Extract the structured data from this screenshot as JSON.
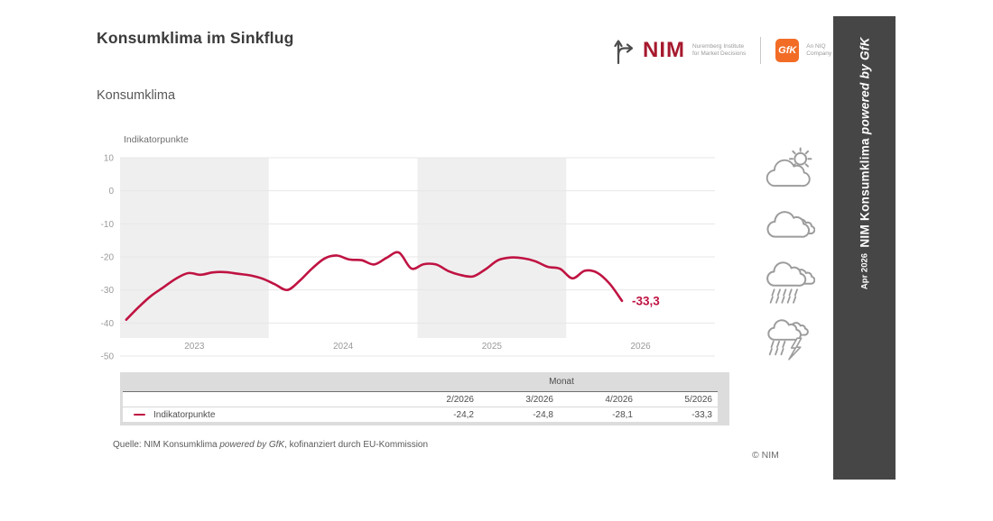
{
  "title": "Konsumklima im Sinkflug",
  "subtitle": "Konsumklima",
  "logos": {
    "nim_name": "NIM",
    "nim_color": "#a6192e",
    "nim_tagline1": "Nuremberg Institute",
    "nim_tagline2": "for Market Decisions",
    "gfk_name": "GfK",
    "gfk_color": "#f26c26",
    "gfk_tagline1": "An NIQ",
    "gfk_tagline2": "Company"
  },
  "chart_data": {
    "type": "line",
    "ylabel": "Indikatorpunkte",
    "ylim": [
      -50,
      10
    ],
    "yticks": [
      "10",
      "0",
      "-10",
      "-20",
      "-30",
      "-40",
      "-50"
    ],
    "grid": "horizontal",
    "year_labels": [
      "2023",
      "2024",
      "2025",
      "2026"
    ],
    "shaded_year_indices": [
      0,
      2
    ],
    "band_color": "#efefef",
    "line_color": "#bf1342",
    "end_annotation": "-33,3",
    "series": [
      {
        "name": "Indikatorpunkte",
        "start_month": "2023-01",
        "end_month": "2026-05",
        "values": [
          -39.0,
          -35.2,
          -31.8,
          -29.2,
          -26.6,
          -24.9,
          -25.4,
          -24.7,
          -24.6,
          -25.1,
          -25.6,
          -26.6,
          -28.3,
          -30.0,
          -27.2,
          -23.5,
          -20.5,
          -19.6,
          -20.8,
          -21.0,
          -22.3,
          -20.3,
          -18.7,
          -23.5,
          -22.2,
          -22.3,
          -24.3,
          -25.5,
          -25.9,
          -23.7,
          -21.0,
          -20.2,
          -20.4,
          -21.3,
          -23.0,
          -23.6,
          -26.5,
          -24.2,
          -24.8,
          -28.1,
          -33.3
        ]
      }
    ]
  },
  "table": {
    "group_header": "Monat",
    "columns": [
      "2/2026",
      "3/2026",
      "4/2026",
      "5/2026"
    ],
    "rows": [
      {
        "label": "Indikatorpunkte",
        "values": [
          "-24,2",
          "-24,8",
          "-28,1",
          "-33,3"
        ]
      }
    ]
  },
  "source_prefix": "Quelle: NIM Konsumklima ",
  "source_italic": "powered by GfK",
  "source_suffix": ", kofinanziert durch EU-Kommission",
  "copyright": "© NIM",
  "sidebar": {
    "bg": "#464646",
    "date": "Apr 2026",
    "title_text": "NIM Konsumklima ",
    "title_italic": "powered by GfK"
  },
  "weather_icons": [
    "sun-behind-cloud",
    "cloudy",
    "rain-cloud",
    "storm-cloud"
  ]
}
